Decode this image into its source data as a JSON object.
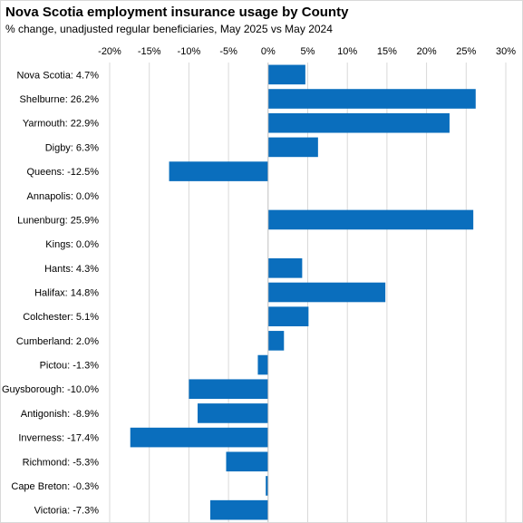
{
  "title": "Nova Scotia employment insurance usage by County",
  "subtitle": "% change, unadjusted regular beneficiaries, May 2025 vs May 2024",
  "colors": {
    "bar": "#0a6ebd",
    "grid": "#d9d9d9",
    "axis": "#bfbfbf",
    "text": "#000000"
  },
  "chart_data": {
    "type": "bar",
    "orientation": "horizontal",
    "title": "Nova Scotia employment insurance usage by County",
    "subtitle": "% change, unadjusted regular beneficiaries, May 2025 vs May 2024",
    "xlim": [
      -20,
      30
    ],
    "xticks": [
      -20,
      -15,
      -10,
      -5,
      0,
      5,
      10,
      15,
      20,
      25,
      30
    ],
    "xtick_labels": [
      "-20%",
      "-15%",
      "-10%",
      "-5%",
      "0%",
      "5%",
      "10%",
      "15%",
      "20%",
      "25%",
      "30%"
    ],
    "x_axis_position": "top",
    "grid": true,
    "legend": "none",
    "categories": [
      "Nova Scotia: 4.7%",
      "Shelburne: 26.2%",
      "Yarmouth: 22.9%",
      "Digby: 6.3%",
      "Queens: -12.5%",
      "Annapolis: 0.0%",
      "Lunenburg: 25.9%",
      "Kings: 0.0%",
      "Hants: 4.3%",
      "Halifax: 14.8%",
      "Colchester: 5.1%",
      "Cumberland: 2.0%",
      "Pictou: -1.3%",
      "Guysborough: -10.0%",
      "Antigonish: -8.9%",
      "Inverness: -17.4%",
      "Richmond: -5.3%",
      "Cape Breton: -0.3%",
      "Victoria: -7.3%"
    ],
    "values": [
      4.7,
      26.2,
      22.9,
      6.3,
      -12.5,
      0.0,
      25.9,
      0.0,
      4.3,
      14.8,
      5.1,
      2.0,
      -1.3,
      -10.0,
      -8.9,
      -17.4,
      -5.3,
      -0.3,
      -7.3
    ]
  }
}
